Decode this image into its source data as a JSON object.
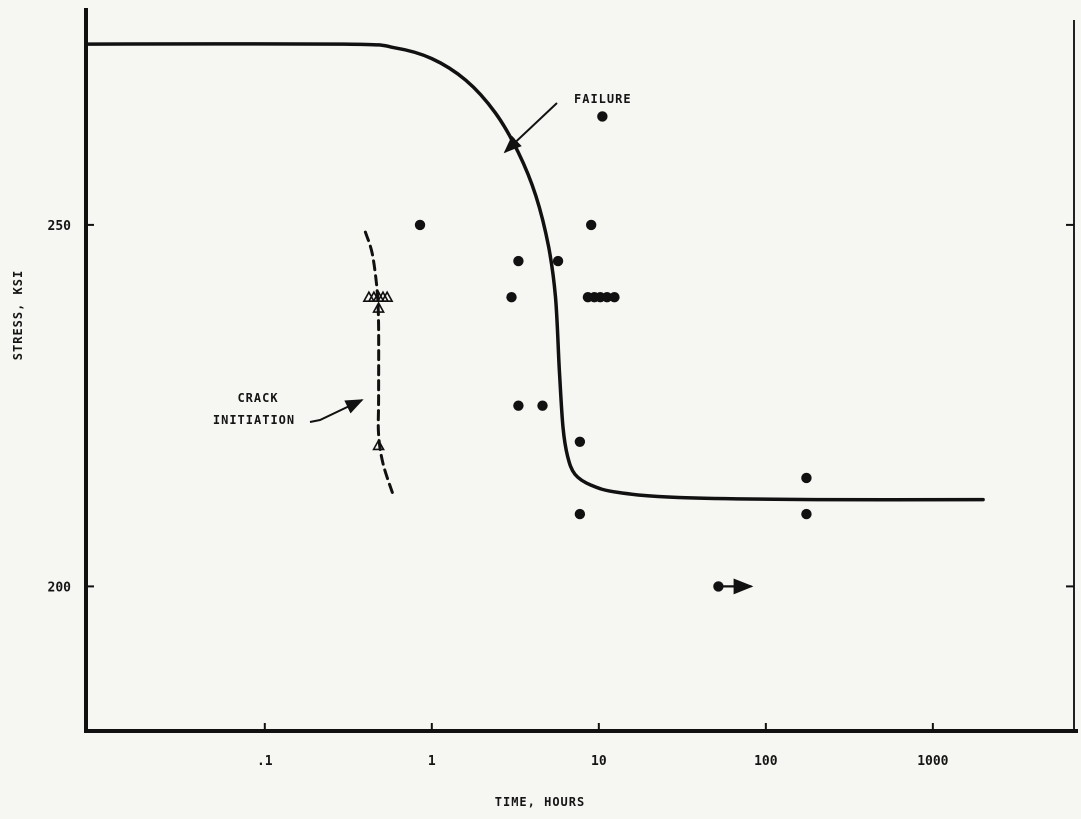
{
  "chart_data": {
    "type": "scatter",
    "title": "",
    "xlabel": "TIME, HOURS",
    "ylabel": "STRESS, KSI",
    "xscale": "log",
    "xlim": [
      0.0085,
      7000
    ],
    "ylim": [
      180,
      280
    ],
    "xticks": [
      {
        "value": 0.1,
        "label": ".1"
      },
      {
        "value": 1,
        "label": "1"
      },
      {
        "value": 10,
        "label": "10"
      },
      {
        "value": 100,
        "label": "100"
      },
      {
        "value": 1000,
        "label": "1000"
      }
    ],
    "yticks": [
      {
        "value": 200,
        "label": "200"
      },
      {
        "value": 250,
        "label": "250"
      }
    ],
    "grid": false,
    "series": [
      {
        "marker": "filled-circle",
        "points": [
          {
            "x": 0.85,
            "y": 250
          },
          {
            "x": 3.0,
            "y": 240
          },
          {
            "x": 3.3,
            "y": 245
          },
          {
            "x": 3.3,
            "y": 225
          },
          {
            "x": 4.6,
            "y": 225
          },
          {
            "x": 5.7,
            "y": 245
          },
          {
            "x": 7.7,
            "y": 220
          },
          {
            "x": 7.7,
            "y": 210
          },
          {
            "x": 8.6,
            "y": 240
          },
          {
            "x": 9.0,
            "y": 250
          },
          {
            "x": 9.4,
            "y": 240
          },
          {
            "x": 10.2,
            "y": 240
          },
          {
            "x": 10.5,
            "y": 265
          },
          {
            "x": 11.2,
            "y": 240
          },
          {
            "x": 12.4,
            "y": 240
          },
          {
            "x": 175,
            "y": 215
          },
          {
            "x": 175,
            "y": 210
          }
        ]
      },
      {
        "marker": "filled-circle-runout-arrow",
        "points": [
          {
            "x": 52,
            "y": 200
          }
        ]
      },
      {
        "marker": "open-triangle",
        "points": [
          {
            "x": 0.42,
            "y": 240
          },
          {
            "x": 0.45,
            "y": 240
          },
          {
            "x": 0.48,
            "y": 240
          },
          {
            "x": 0.51,
            "y": 240
          },
          {
            "x": 0.54,
            "y": 240
          },
          {
            "x": 0.48,
            "y": 238.5
          },
          {
            "x": 0.48,
            "y": 219.5
          }
        ]
      }
    ],
    "curves": [
      {
        "style": "solid",
        "points": [
          [
            0.0085,
            275
          ],
          [
            0.3,
            275
          ],
          [
            0.6,
            274.5
          ],
          [
            1.0,
            273
          ],
          [
            1.6,
            270
          ],
          [
            2.4,
            265.5
          ],
          [
            3.3,
            260
          ],
          [
            4.2,
            254
          ],
          [
            5.0,
            247
          ],
          [
            5.5,
            240
          ],
          [
            5.8,
            230
          ],
          [
            6.1,
            222
          ],
          [
            6.5,
            218
          ],
          [
            7.2,
            215.5
          ],
          [
            9,
            214
          ],
          [
            13,
            213
          ],
          [
            30,
            212.3
          ],
          [
            200,
            212
          ],
          [
            2000,
            212
          ]
        ]
      },
      {
        "style": "dashed",
        "points": [
          [
            0.4,
            249
          ],
          [
            0.44,
            246
          ],
          [
            0.47,
            241
          ],
          [
            0.48,
            236
          ],
          [
            0.48,
            226
          ],
          [
            0.48,
            221
          ],
          [
            0.51,
            217
          ],
          [
            0.58,
            213
          ]
        ]
      }
    ],
    "annotations": [
      {
        "text": "FAILURE",
        "points_to": {
          "x": 2.7,
          "y": 263.5
        }
      },
      {
        "lines": [
          "CRACK",
          "INITIATION"
        ],
        "points_to": {
          "x": 0.45,
          "y": 229
        }
      }
    ]
  }
}
